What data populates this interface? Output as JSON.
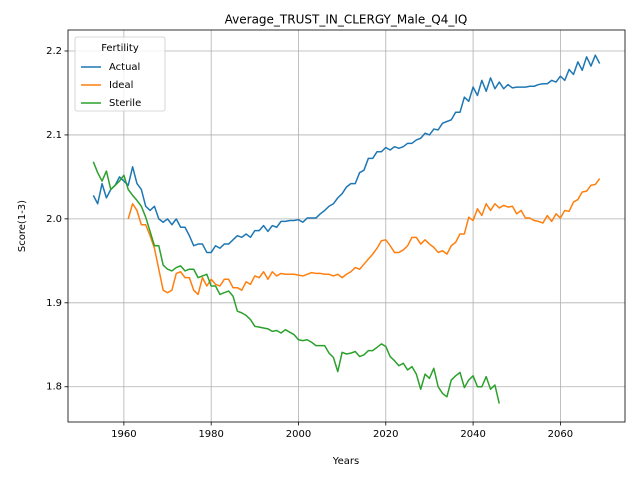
{
  "chart_data": {
    "type": "line",
    "title": "Average_TRUST_IN_CLERGY_Male_Q4_IQ",
    "xlabel": "Years",
    "ylabel": "Score(1-3)",
    "legend_title": "Fertility",
    "legend": "upper left",
    "grid": true,
    "xlim": [
      1947.2,
      2074.8
    ],
    "ylim": [
      1.758,
      2.225
    ],
    "xticks": [
      1960,
      1980,
      2000,
      2020,
      2040,
      2060
    ],
    "yticks": [
      1.8,
      1.9,
      {
        "value": 2,
        "label": "2.0"
      },
      2.1,
      2.2
    ],
    "x": [
      1953,
      1954,
      1955,
      1956,
      1957,
      1958,
      1959,
      1960,
      1961,
      1962,
      1963,
      1964,
      1965,
      1966,
      1967,
      1968,
      1969,
      1970,
      1971,
      1972,
      1973,
      1974,
      1975,
      1976,
      1977,
      1978,
      1979,
      1980,
      1981,
      1982,
      1983,
      1984,
      1985,
      1986,
      1987,
      1988,
      1989,
      1990,
      1991,
      1992,
      1993,
      1994,
      1995,
      1996,
      1997,
      1998,
      1999,
      2000,
      2001,
      2002,
      2003,
      2004,
      2005,
      2006,
      2007,
      2008,
      2009,
      2010,
      2011,
      2012,
      2013,
      2014,
      2015,
      2016,
      2017,
      2018,
      2019,
      2020,
      2021,
      2022,
      2023,
      2024,
      2025,
      2026,
      2027,
      2028,
      2029,
      2030,
      2031,
      2032,
      2033,
      2034,
      2035,
      2036,
      2037,
      2038,
      2039,
      2040,
      2041,
      2042,
      2043,
      2044,
      2045,
      2046,
      2047,
      2048,
      2049,
      2050,
      2051,
      2052,
      2053,
      2054,
      2055,
      2056,
      2057,
      2058,
      2059,
      2060,
      2061,
      2062,
      2063,
      2064,
      2065,
      2066,
      2067,
      2068,
      2069
    ],
    "series": [
      {
        "name": "Actual",
        "color": "#1f77b4",
        "values": [
          2.028,
          2.018,
          2.042,
          2.025,
          2.035,
          2.04,
          2.05,
          2.045,
          2.04,
          2.062,
          2.042,
          2.035,
          2.015,
          2.01,
          2.015,
          2.0,
          1.996,
          2.0,
          1.993,
          2.0,
          1.99,
          1.99,
          1.98,
          1.968,
          1.97,
          1.97,
          1.96,
          1.96,
          1.968,
          1.965,
          1.97,
          1.97,
          1.975,
          1.98,
          1.978,
          1.982,
          1.978,
          1.986,
          1.986,
          1.992,
          1.985,
          1.992,
          1.99,
          1.997,
          1.997,
          1.998,
          1.998,
          1.999,
          1.996,
          2.001,
          2.001,
          2.001,
          2.006,
          2.01,
          2.015,
          2.018,
          2.025,
          2.03,
          2.038,
          2.042,
          2.042,
          2.055,
          2.058,
          2.072,
          2.072,
          2.08,
          2.08,
          2.085,
          2.082,
          2.086,
          2.084,
          2.086,
          2.09,
          2.09,
          2.094,
          2.096,
          2.102,
          2.1,
          2.107,
          2.106,
          2.114,
          2.116,
          2.118,
          2.127,
          2.127,
          2.145,
          2.14,
          2.157,
          2.147,
          2.165,
          2.152,
          2.168,
          2.155,
          2.163,
          2.155,
          2.16,
          2.156,
          2.157,
          2.157,
          2.157,
          2.158,
          2.158,
          2.16,
          2.161,
          2.161,
          2.165,
          2.163,
          2.17,
          2.165,
          2.178,
          2.172,
          2.187,
          2.177,
          2.193,
          2.182,
          2.195,
          2.185
        ]
      },
      {
        "name": "Ideal",
        "color": "#ff7f0e",
        "values": [
          null,
          null,
          null,
          null,
          null,
          null,
          null,
          null,
          2.0,
          2.018,
          2.01,
          1.993,
          1.993,
          1.98,
          1.965,
          1.94,
          1.915,
          1.912,
          1.915,
          1.935,
          1.937,
          1.93,
          1.93,
          1.915,
          1.91,
          1.93,
          1.92,
          1.928,
          1.922,
          1.92,
          1.928,
          1.928,
          1.918,
          1.918,
          1.915,
          1.925,
          1.922,
          1.932,
          1.93,
          1.937,
          1.928,
          1.937,
          1.932,
          1.935,
          1.934,
          1.934,
          1.934,
          1.933,
          1.932,
          1.934,
          1.936,
          1.935,
          1.935,
          1.934,
          1.934,
          1.932,
          1.934,
          1.93,
          1.934,
          1.937,
          1.942,
          1.94,
          1.946,
          1.952,
          1.958,
          1.965,
          1.974,
          1.975,
          1.968,
          1.96,
          1.96,
          1.963,
          1.968,
          1.978,
          1.978,
          1.97,
          1.975,
          1.97,
          1.966,
          1.96,
          1.962,
          1.958,
          1.968,
          1.972,
          1.982,
          1.982,
          2.002,
          1.998,
          2.012,
          2.004,
          2.018,
          2.01,
          2.018,
          2.013,
          2.016,
          2.014,
          2.015,
          2.006,
          2.01,
          2.001,
          2.001,
          1.998,
          1.997,
          1.995,
          2.004,
          1.997,
          2.006,
          2.001,
          2.01,
          2.009,
          2.02,
          2.023,
          2.032,
          2.033,
          2.04,
          2.041,
          2.048
        ]
      },
      {
        "name": "Sterile",
        "color": "#2ca02c",
        "values": [
          2.068,
          2.055,
          2.045,
          2.057,
          2.035,
          2.04,
          2.045,
          2.052,
          2.035,
          2.028,
          2.022,
          2.015,
          2.002,
          1.985,
          1.968,
          1.968,
          1.945,
          1.94,
          1.938,
          1.942,
          1.944,
          1.938,
          1.94,
          1.94,
          1.93,
          1.932,
          1.934,
          1.92,
          1.92,
          1.91,
          1.912,
          1.914,
          1.908,
          1.89,
          1.888,
          1.885,
          1.88,
          1.872,
          1.871,
          1.87,
          1.869,
          1.866,
          1.867,
          1.864,
          1.868,
          1.865,
          1.862,
          1.856,
          1.855,
          1.856,
          1.853,
          1.849,
          1.849,
          1.849,
          1.84,
          1.835,
          1.818,
          1.841,
          1.839,
          1.84,
          1.842,
          1.836,
          1.838,
          1.843,
          1.843,
          1.847,
          1.851,
          1.848,
          1.836,
          1.831,
          1.825,
          1.828,
          1.82,
          1.824,
          1.815,
          1.797,
          1.815,
          1.81,
          1.822,
          1.8,
          1.792,
          1.788,
          1.808,
          1.813,
          1.817,
          1.799,
          1.808,
          1.813,
          1.8,
          1.8,
          1.812,
          1.797,
          1.802,
          1.78,
          null,
          null,
          null,
          null,
          null,
          null,
          null,
          null,
          null,
          null,
          null,
          null,
          null,
          null,
          null,
          null,
          null,
          null,
          null,
          null,
          null,
          null,
          null
        ]
      }
    ]
  }
}
